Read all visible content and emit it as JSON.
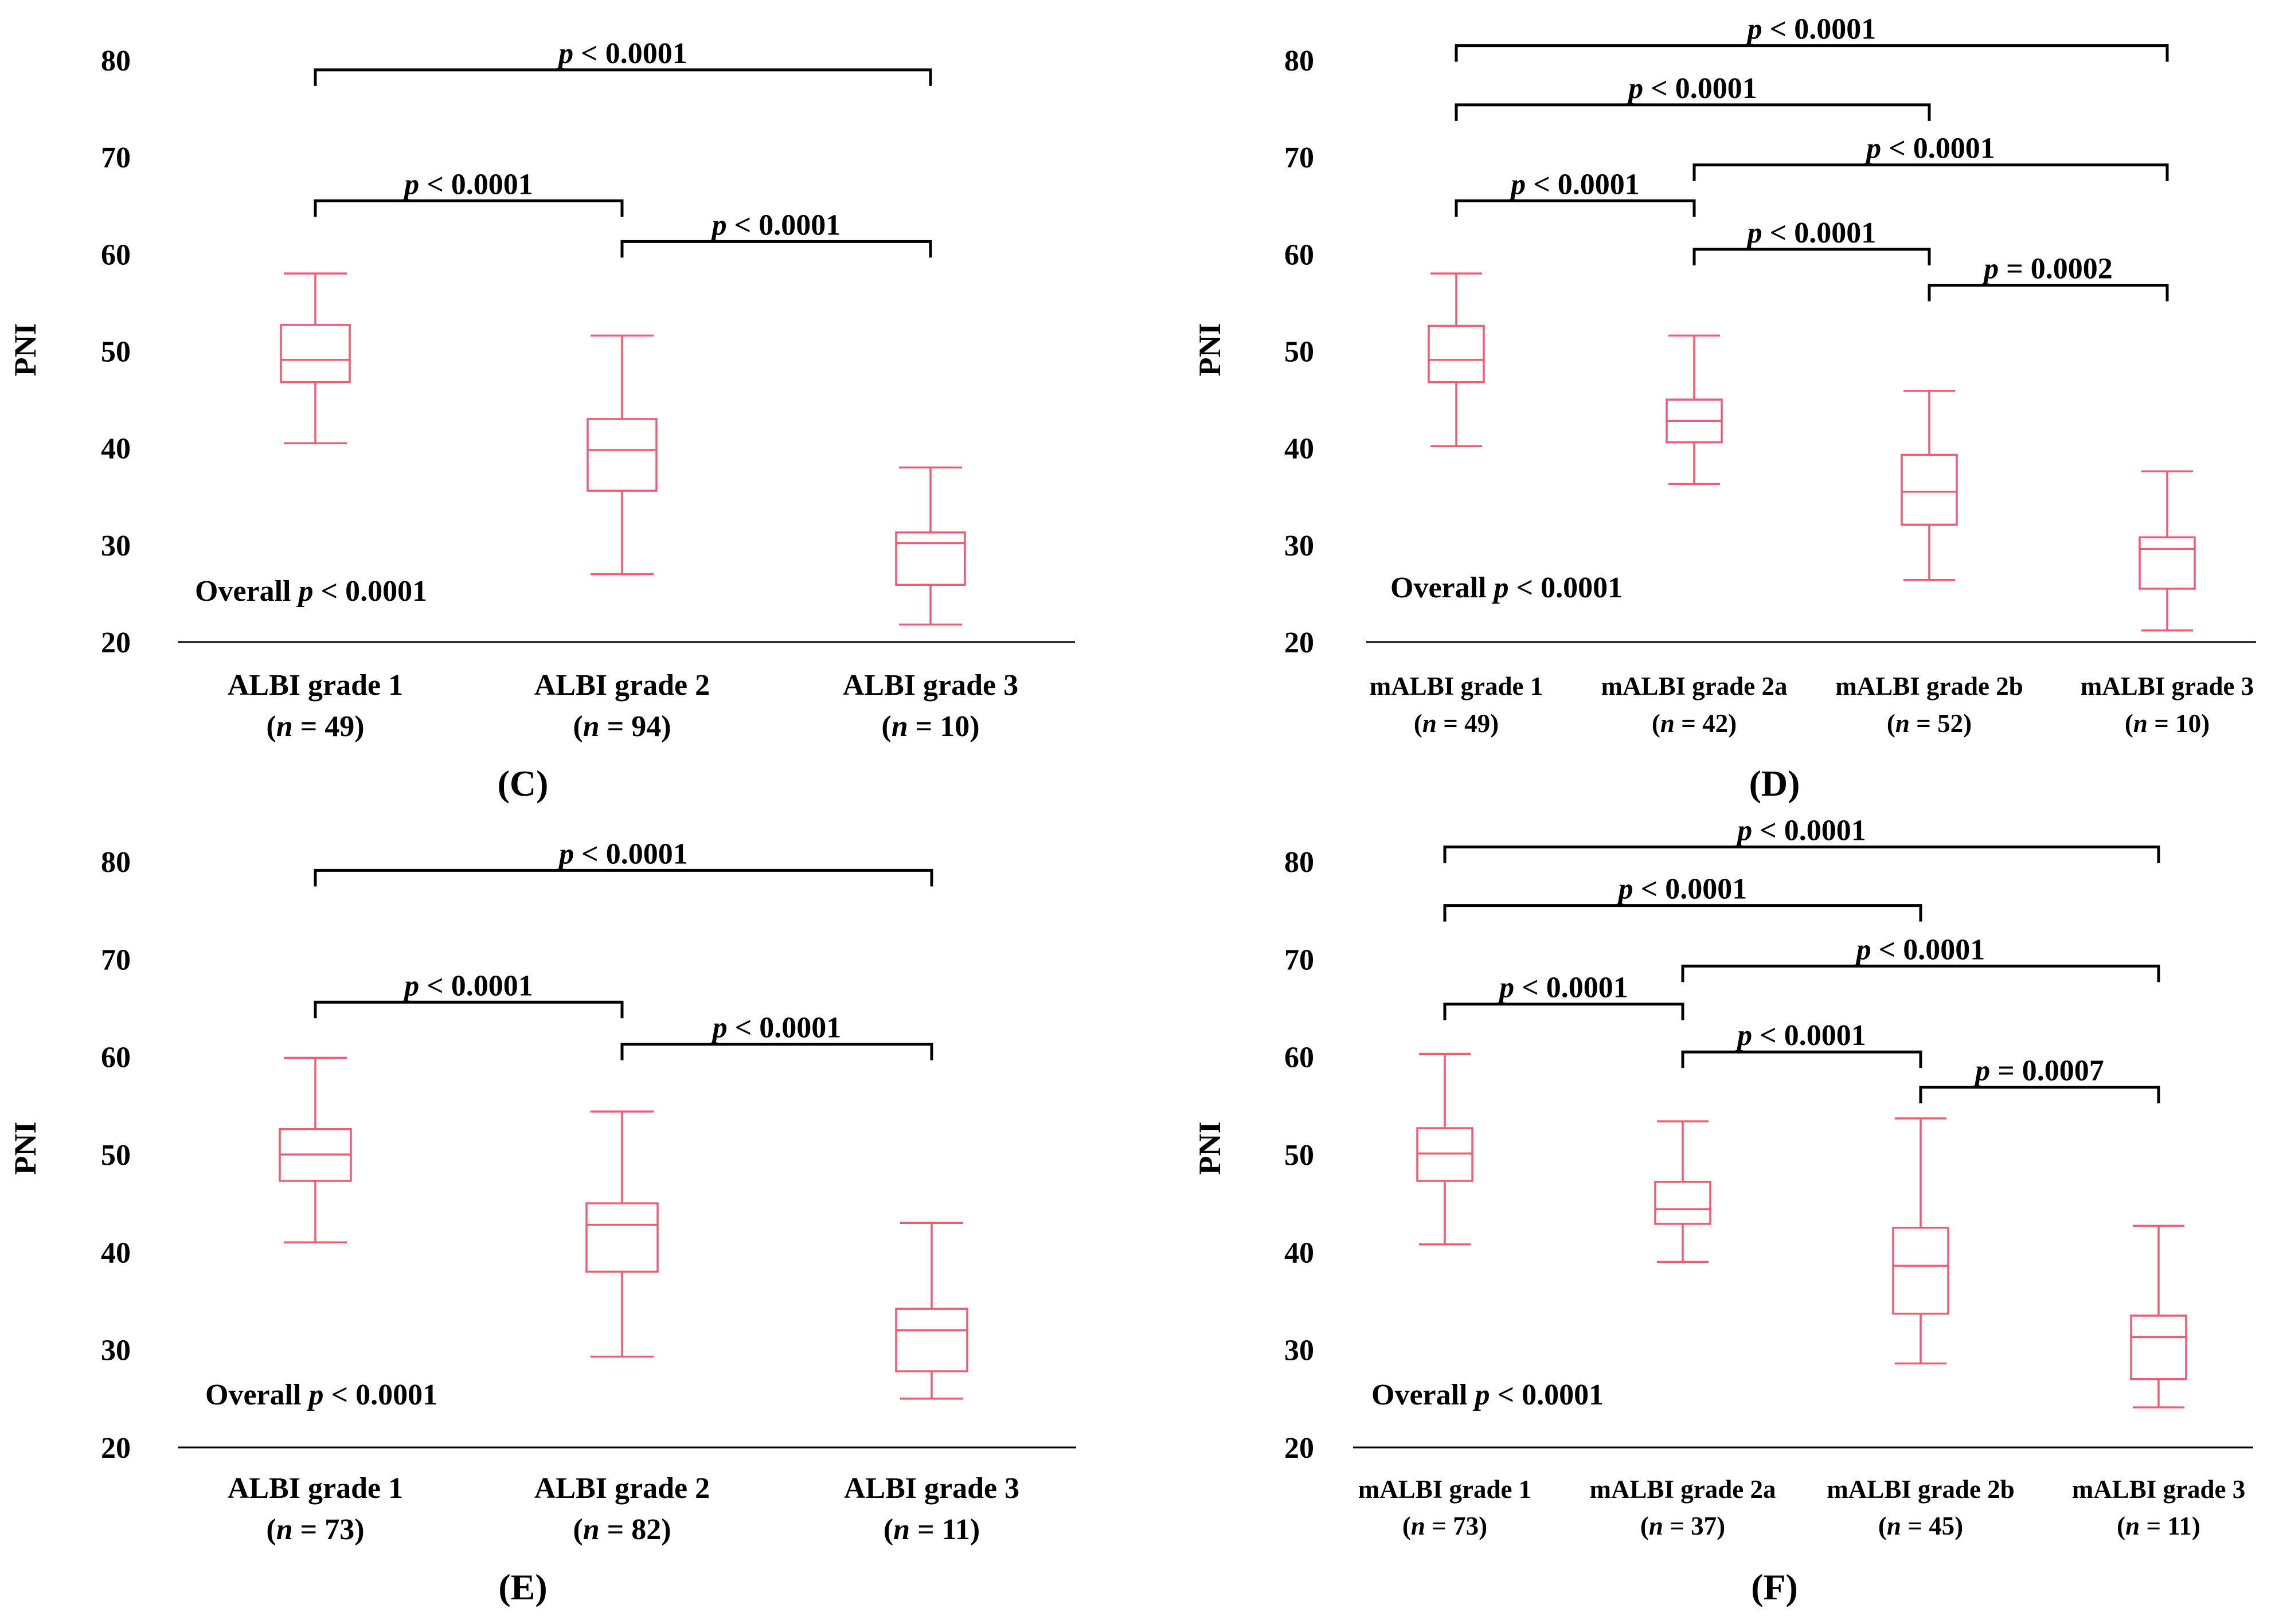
{
  "colors": {
    "box": "#f05a72",
    "ink": "#000000"
  },
  "chart_data": [
    {
      "panel": "C",
      "type": "box",
      "ylabel": "PNI",
      "ylim": [
        20,
        80
      ],
      "yticks": [
        20,
        30,
        40,
        50,
        60,
        70,
        80
      ],
      "overall": {
        "prefix": "Overall",
        "p": "p",
        "rest": " < 0.0001"
      },
      "groups": [
        {
          "label": "ALBI grade 1",
          "n": "(n = 49)",
          "min": 40.5,
          "q1": 46.8,
          "median": 49.1,
          "q3": 52.7,
          "max": 58.0
        },
        {
          "label": "ALBI grade 2",
          "n": "(n = 94)",
          "min": 27.0,
          "q1": 35.6,
          "median": 39.8,
          "q3": 43.0,
          "max": 51.6
        },
        {
          "label": "ALBI grade 3",
          "n": "(n = 10)",
          "min": 21.8,
          "q1": 25.9,
          "median": 30.2,
          "q3": 31.3,
          "max": 38.0
        }
      ],
      "comparisons": [
        {
          "from": 0,
          "to": 2,
          "level": 79,
          "p": "p",
          "rest": " < 0.0001"
        },
        {
          "from": 0,
          "to": 1,
          "level": 65.5,
          "p": "p",
          "rest": " < 0.0001"
        },
        {
          "from": 1,
          "to": 2,
          "level": 61.3,
          "p": "p",
          "rest": " < 0.0001"
        }
      ]
    },
    {
      "panel": "D",
      "type": "box",
      "ylabel": "PNI",
      "ylim": [
        20,
        80
      ],
      "yticks": [
        20,
        30,
        40,
        50,
        60,
        70,
        80
      ],
      "overall": {
        "prefix": "Overall",
        "p": "p",
        "rest": " < 0.0001"
      },
      "groups": [
        {
          "label": "mALBI grade 1",
          "n": "(n = 49)",
          "min": 40.2,
          "q1": 46.8,
          "median": 49.1,
          "q3": 52.6,
          "max": 58.0
        },
        {
          "label": "mALBI grade 2a",
          "n": "(n = 42)",
          "min": 36.3,
          "q1": 40.6,
          "median": 42.8,
          "q3": 45.0,
          "max": 51.6
        },
        {
          "label": "mALBI grade 2b",
          "n": "(n = 52)",
          "min": 26.4,
          "q1": 32.1,
          "median": 35.5,
          "q3": 39.3,
          "max": 45.9
        },
        {
          "label": "mALBI grade 3",
          "n": "(n = 10)",
          "min": 21.2,
          "q1": 25.5,
          "median": 29.6,
          "q3": 30.8,
          "max": 37.6
        }
      ],
      "comparisons": [
        {
          "from": 0,
          "to": 3,
          "level": 81.5,
          "p": "p",
          "rest": " < 0.0001"
        },
        {
          "from": 0,
          "to": 2,
          "level": 75.4,
          "p": "p",
          "rest": " < 0.0001"
        },
        {
          "from": 1,
          "to": 3,
          "level": 69.2,
          "p": "p",
          "rest": " < 0.0001"
        },
        {
          "from": 0,
          "to": 1,
          "level": 65.5,
          "p": "p",
          "rest": " < 0.0001"
        },
        {
          "from": 1,
          "to": 2,
          "level": 60.5,
          "p": "p",
          "rest": " < 0.0001"
        },
        {
          "from": 2,
          "to": 3,
          "level": 56.8,
          "p": "p",
          "rest": " = 0.0002"
        }
      ]
    },
    {
      "panel": "E",
      "type": "box",
      "ylabel": "PNI",
      "ylim": [
        20,
        80
      ],
      "yticks": [
        20,
        30,
        40,
        50,
        60,
        70,
        80
      ],
      "overall": {
        "prefix": "Overall",
        "p": "p",
        "rest": " < 0.0001"
      },
      "groups": [
        {
          "label": "ALBI grade 1",
          "n": "(n = 73)",
          "min": 41.0,
          "q1": 47.3,
          "median": 50.0,
          "q3": 52.6,
          "max": 59.9
        },
        {
          "label": "ALBI grade 2",
          "n": "(n = 82)",
          "min": 29.3,
          "q1": 38.0,
          "median": 42.8,
          "q3": 45.0,
          "max": 54.4
        },
        {
          "label": "ALBI grade 3",
          "n": "(n = 11)",
          "min": 25.0,
          "q1": 27.8,
          "median": 32.0,
          "q3": 34.2,
          "max": 43.0
        }
      ],
      "comparisons": [
        {
          "from": 0,
          "to": 2,
          "level": 79.1,
          "p": "p",
          "rest": " < 0.0001"
        },
        {
          "from": 0,
          "to": 1,
          "level": 65.6,
          "p": "p",
          "rest": " < 0.0001"
        },
        {
          "from": 1,
          "to": 2,
          "level": 61.3,
          "p": "p",
          "rest": " < 0.0001"
        }
      ]
    },
    {
      "panel": "F",
      "type": "box",
      "ylabel": "PNI",
      "ylim": [
        20,
        80
      ],
      "yticks": [
        20,
        30,
        40,
        50,
        60,
        70,
        80
      ],
      "overall": {
        "prefix": "Overall",
        "p": "p",
        "rest": " < 0.0001"
      },
      "groups": [
        {
          "label": "mALBI grade 1",
          "n": "(n = 73)",
          "min": 40.8,
          "q1": 47.3,
          "median": 50.1,
          "q3": 52.7,
          "max": 60.3
        },
        {
          "label": "mALBI grade 2a",
          "n": "(n = 37)",
          "min": 39.0,
          "q1": 42.9,
          "median": 44.4,
          "q3": 47.2,
          "max": 53.4
        },
        {
          "label": "mALBI grade 2b",
          "n": "(n = 45)",
          "min": 28.6,
          "q1": 33.7,
          "median": 38.6,
          "q3": 42.5,
          "max": 53.7
        },
        {
          "label": "mALBI grade 3",
          "n": "(n = 11)",
          "min": 24.1,
          "q1": 27.0,
          "median": 31.3,
          "q3": 33.5,
          "max": 42.7
        }
      ],
      "comparisons": [
        {
          "from": 0,
          "to": 3,
          "level": 81.5,
          "p": "p",
          "rest": " < 0.0001"
        },
        {
          "from": 0,
          "to": 2,
          "level": 75.5,
          "p": "p",
          "rest": " < 0.0001"
        },
        {
          "from": 1,
          "to": 3,
          "level": 69.3,
          "p": "p",
          "rest": " < 0.0001"
        },
        {
          "from": 0,
          "to": 1,
          "level": 65.4,
          "p": "p",
          "rest": " < 0.0001"
        },
        {
          "from": 1,
          "to": 2,
          "level": 60.5,
          "p": "p",
          "rest": " < 0.0001"
        },
        {
          "from": 2,
          "to": 3,
          "level": 56.9,
          "p": "p",
          "rest": " = 0.0007"
        }
      ]
    }
  ]
}
